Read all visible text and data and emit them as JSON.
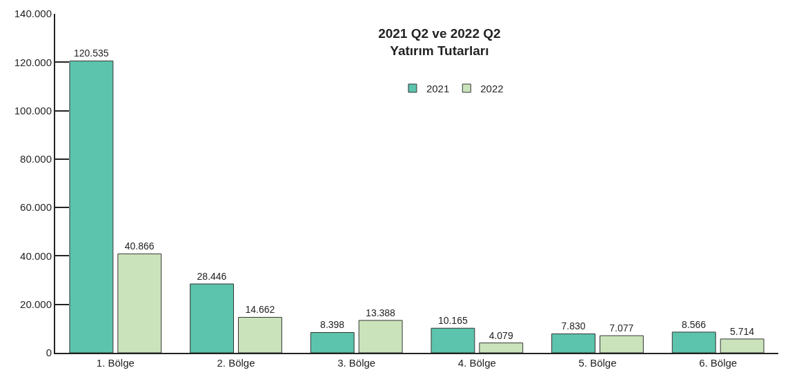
{
  "chart_data": {
    "type": "bar",
    "title": "2021 Q2 ve 2022 Q2\nYatırım Tutarları",
    "categories": [
      "1. Bölge",
      "2. Bölge",
      "3. Bölge",
      "4. Bölge",
      "5. Bölge",
      "6. Bölge"
    ],
    "series": [
      {
        "name": "2021",
        "color": "#5cc3ac",
        "values": [
          120535,
          28446,
          8398,
          10165,
          7830,
          8566
        ],
        "value_labels": [
          "120.535",
          "28.446",
          "8.398",
          "10.165",
          "7.830",
          "8.566"
        ]
      },
      {
        "name": "2022",
        "color": "#cae3bb",
        "values": [
          40866,
          14662,
          13388,
          4079,
          7077,
          5714
        ],
        "value_labels": [
          "40.866",
          "14.662",
          "13.388",
          "4.079",
          "7.077",
          "5.714"
        ]
      }
    ],
    "ylim": [
      0,
      140000
    ],
    "yticks": [
      0,
      {
        "value": 20000,
        "label": "20.000"
      },
      {
        "value": 40000,
        "label": "40.000"
      },
      {
        "value": 60000,
        "label": "60.000"
      },
      {
        "value": 80000,
        "label": "80.000"
      },
      {
        "value": 100000,
        "label": "100.000"
      },
      {
        "value": 120000,
        "label": "120.000"
      },
      {
        "value": 140000,
        "label": "140.000"
      }
    ],
    "legend": "top"
  }
}
